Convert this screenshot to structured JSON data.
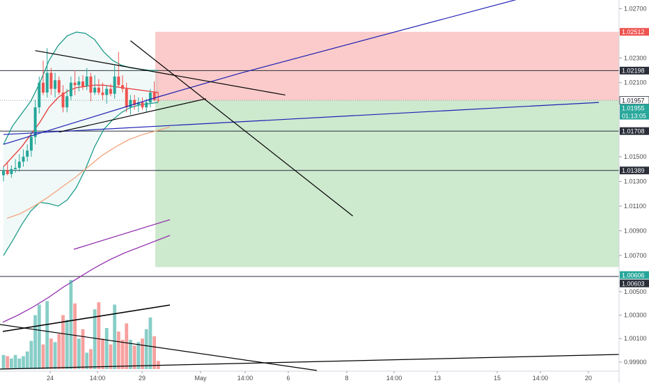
{
  "chart_data": {
    "type": "candlestick",
    "price_axis": {
      "ticks": [
        1.027,
        1.023,
        1.021,
        1.0195,
        1.015,
        1.013,
        1.011,
        1.009,
        1.007
      ],
      "tick_labels": [
        "1.02700",
        "1.02300",
        "1.02100",
        "1.01950",
        "1.01500",
        "1.01300",
        "1.01100",
        "1.00900",
        "1.00700"
      ],
      "range": [
        1.0053,
        1.0277
      ]
    },
    "volume_axis": {
      "ticks": [
        1.005,
        1.003,
        1.001,
        0.999
      ],
      "tick_labels": [
        "1.00500",
        "1.00300",
        "1.00100",
        "0.99900"
      ],
      "range": [
        0.9984,
        1.0063
      ]
    },
    "time_axis": {
      "labels": [
        "24",
        "14:00",
        "29",
        "May",
        "14:00",
        "6",
        "8",
        "14:00",
        "13",
        "15",
        "14:00",
        "20"
      ]
    },
    "price_tags": [
      {
        "label": "1.02512",
        "value": 1.02512,
        "color": "#ef5350",
        "text_color": "#ffffff"
      },
      {
        "label": "1.02198",
        "value": 1.02198,
        "color": "#2a2e39",
        "text_color": "#ffffff"
      },
      {
        "label": "1.01957",
        "value": 1.01957,
        "color": "#ffffff",
        "text_color": "#131722"
      },
      {
        "label": "1.01955",
        "value": 1.01955,
        "color": "#26a69a",
        "text_color": "#ffffff"
      },
      {
        "label": "01:13:05",
        "color": "#26a69a",
        "text_color": "#ffffff"
      },
      {
        "label": "1.01708",
        "value": 1.01708,
        "color": "#2a2e39",
        "text_color": "#ffffff"
      },
      {
        "label": "1.01389",
        "value": 1.01389,
        "color": "#2a2e39",
        "text_color": "#ffffff"
      },
      {
        "label": "1.00606",
        "value": 1.00606,
        "color": "#26a69a",
        "text_color": "#ffffff"
      },
      {
        "label": "1.00603",
        "value": 1.00603,
        "color": "#2a2e39",
        "text_color": "#ffffff"
      }
    ],
    "horizontal_levels": [
      1.02198,
      1.01708,
      1.01389
    ],
    "position": {
      "entry": 1.01957,
      "stop": 1.02512,
      "target": 1.00606
    },
    "candles": [
      {
        "o": 1.0135,
        "h": 1.0142,
        "l": 1.013,
        "c": 1.0139
      },
      {
        "o": 1.0139,
        "h": 1.0145,
        "l": 1.0135,
        "c": 1.0136
      },
      {
        "o": 1.0136,
        "h": 1.0143,
        "l": 1.0133,
        "c": 1.014
      },
      {
        "o": 1.014,
        "h": 1.0148,
        "l": 1.0137,
        "c": 1.0141
      },
      {
        "o": 1.0141,
        "h": 1.0152,
        "l": 1.0138,
        "c": 1.0146
      },
      {
        "o": 1.0146,
        "h": 1.0156,
        "l": 1.0142,
        "c": 1.015
      },
      {
        "o": 1.015,
        "h": 1.016,
        "l": 1.0146,
        "c": 1.0155
      },
      {
        "o": 1.0155,
        "h": 1.017,
        "l": 1.015,
        "c": 1.0166
      },
      {
        "o": 1.0166,
        "h": 1.0196,
        "l": 1.016,
        "c": 1.019
      },
      {
        "o": 1.019,
        "h": 1.0215,
        "l": 1.0185,
        "c": 1.021
      },
      {
        "o": 1.021,
        "h": 1.0228,
        "l": 1.02,
        "c": 1.0202
      },
      {
        "o": 1.0202,
        "h": 1.0238,
        "l": 1.0198,
        "c": 1.0218
      },
      {
        "o": 1.0218,
        "h": 1.0222,
        "l": 1.02,
        "c": 1.0205
      },
      {
        "o": 1.0205,
        "h": 1.0218,
        "l": 1.0198,
        "c": 1.0212
      },
      {
        "o": 1.0212,
        "h": 1.0215,
        "l": 1.02,
        "c": 1.0202
      },
      {
        "o": 1.0202,
        "h": 1.0208,
        "l": 1.0186,
        "c": 1.019
      },
      {
        "o": 1.019,
        "h": 1.0205,
        "l": 1.0186,
        "c": 1.0199
      },
      {
        "o": 1.0199,
        "h": 1.0215,
        "l": 1.0196,
        "c": 1.021
      },
      {
        "o": 1.021,
        "h": 1.022,
        "l": 1.02,
        "c": 1.0208
      },
      {
        "o": 1.0208,
        "h": 1.0215,
        "l": 1.0203,
        "c": 1.0211
      },
      {
        "o": 1.0211,
        "h": 1.0216,
        "l": 1.0204,
        "c": 1.0207
      },
      {
        "o": 1.0207,
        "h": 1.0222,
        "l": 1.0204,
        "c": 1.0215
      },
      {
        "o": 1.0215,
        "h": 1.0218,
        "l": 1.0195,
        "c": 1.0202
      },
      {
        "o": 1.0202,
        "h": 1.0216,
        "l": 1.02,
        "c": 1.0206
      },
      {
        "o": 1.0206,
        "h": 1.0213,
        "l": 1.02,
        "c": 1.0202
      },
      {
        "o": 1.0202,
        "h": 1.021,
        "l": 1.0196,
        "c": 1.02
      },
      {
        "o": 1.02,
        "h": 1.0208,
        "l": 1.0193,
        "c": 1.0205
      },
      {
        "o": 1.0205,
        "h": 1.0209,
        "l": 1.0199,
        "c": 1.0201
      },
      {
        "o": 1.0201,
        "h": 1.0224,
        "l": 1.0197,
        "c": 1.0215
      },
      {
        "o": 1.0215,
        "h": 1.0235,
        "l": 1.0206,
        "c": 1.0208
      },
      {
        "o": 1.0208,
        "h": 1.0216,
        "l": 1.0202,
        "c": 1.0205
      },
      {
        "o": 1.0205,
        "h": 1.021,
        "l": 1.0186,
        "c": 1.019
      },
      {
        "o": 1.019,
        "h": 1.02,
        "l": 1.0184,
        "c": 1.0196
      },
      {
        "o": 1.0196,
        "h": 1.02,
        "l": 1.0188,
        "c": 1.0192
      },
      {
        "o": 1.0192,
        "h": 1.0198,
        "l": 1.0186,
        "c": 1.0194
      },
      {
        "o": 1.0194,
        "h": 1.0198,
        "l": 1.0188,
        "c": 1.019
      },
      {
        "o": 1.019,
        "h": 1.0197,
        "l": 1.0186,
        "c": 1.0194
      },
      {
        "o": 1.0194,
        "h": 1.0205,
        "l": 1.019,
        "c": 1.0202
      },
      {
        "o": 1.0202,
        "h": 1.0211,
        "l": 1.0195,
        "c": 1.0196
      },
      {
        "o": 1.0196,
        "h": 1.0202,
        "l": 1.0194,
        "c": 1.01957
      }
    ],
    "volume": [
      0.9996,
      0.9995,
      0.9993,
      0.9996,
      0.9993,
      0.9995,
      0.9999,
      1.0008,
      1.003,
      1.0039,
      1.0005,
      1.0042,
      1.001,
      1.0007,
      1.0014,
      1.003,
      1.0026,
      1.006,
      1.004,
      1.001,
      1.0018,
      0.9998,
      1.0001,
      1.0035,
      1.0041,
      1.001,
      1.0019,
      1.0005,
      1.0039,
      1.0016,
      1.0009,
      1.0023,
      1.0009,
      1.0004,
      1.0007,
      1.001,
      1.0018,
      1.0028,
      1.0012,
      0.9991
    ],
    "indicators": {
      "bollinger": {
        "upper": [
          1.016,
          1.0175,
          1.0185,
          1.0195,
          1.021,
          1.0228,
          1.024,
          1.0248,
          1.0251,
          1.025,
          1.0245,
          1.0235,
          1.0228,
          1.0224,
          1.0222,
          1.0221,
          1.022,
          1.022
        ],
        "middle": [
          1.0142,
          1.015,
          1.0158,
          1.0168,
          1.0178,
          1.019,
          1.0198,
          1.0203,
          1.0206,
          1.0207,
          1.0208,
          1.0208,
          1.0207,
          1.0206,
          1.0205,
          1.0204,
          1.0203,
          1.0202
        ],
        "lower": [
          1.007,
          1.0082,
          1.0095,
          1.0106,
          1.0113,
          1.0112,
          1.011,
          1.0115,
          1.0125,
          1.014,
          1.0158,
          1.0172,
          1.018,
          1.0186,
          1.019,
          1.0192,
          1.0193,
          1.0194
        ]
      },
      "moving_average": [
        1.01,
        1.0104,
        1.011,
        1.0117,
        1.0125,
        1.0133,
        1.0142,
        1.0151,
        1.0158,
        1.0164,
        1.0168,
        1.0171,
        1.0174
      ],
      "volume_average": [
        1.0024,
        1.003,
        1.0037,
        1.0045,
        1.0054,
        1.0062,
        1.007,
        1.0077,
        1.0083,
        1.0088,
        1.0093,
        1.0098
      ]
    },
    "trendlines": [
      {
        "name": "ascending-blue",
        "color": "#1f1fb4",
        "points": [
          [
            0,
            1.016
          ],
          [
            39.5,
            1.0199
          ],
          [
            60,
            1.0218
          ],
          [
            130,
            1.0278
          ]
        ]
      },
      {
        "name": "lower-blue",
        "color": "#1f1fb4",
        "points": [
          [
            0,
            1.0168
          ],
          [
            150,
            1.0194
          ]
        ]
      },
      {
        "name": "black-upper",
        "color": "#000000",
        "points": [
          [
            8,
            1.0236
          ],
          [
            71,
            1.02
          ]
        ]
      },
      {
        "name": "black-steep",
        "color": "#000000",
        "points": [
          [
            32,
            1.0244
          ],
          [
            88,
            1.0102
          ]
        ]
      },
      {
        "name": "black-channel-low",
        "color": "#000000",
        "points": [
          [
            14,
            1.017
          ],
          [
            51,
            1.0197
          ]
        ]
      }
    ]
  }
}
